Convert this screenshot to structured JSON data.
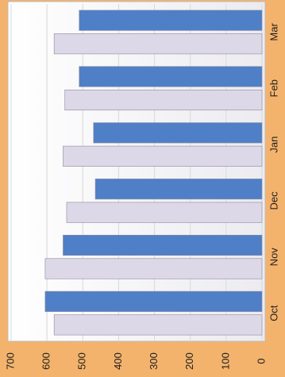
{
  "chart_data": {
    "type": "bar",
    "orientation": "horizontal",
    "categories": [
      "Oct",
      "Nov",
      "Dec",
      "Jan",
      "Feb",
      "Mar"
    ],
    "series": [
      {
        "color": "#4f7fc6",
        "values": [
          605,
          555,
          465,
          470,
          510,
          510
        ]
      },
      {
        "color": "#dcd8e8",
        "values": [
          580,
          605,
          545,
          555,
          550,
          580
        ]
      }
    ],
    "xlim": [
      0,
      700
    ],
    "xticks": [
      0,
      100,
      200,
      300,
      400,
      500,
      600,
      700
    ],
    "grid": true
  }
}
